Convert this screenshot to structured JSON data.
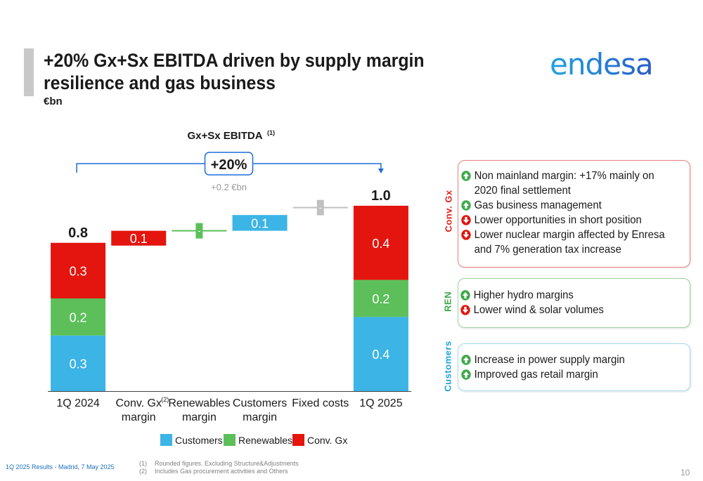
{
  "title": "+20% Gx+Sx EBITDA driven by supply margin resilience and gas business",
  "unit": "€bn",
  "logo_text": "endesa",
  "chart_data": {
    "type": "bar",
    "subtype": "waterfall-stacked",
    "title": "Gx+Sx EBITDA",
    "title_note": "(1)",
    "categories": [
      "1Q 2024",
      "Conv. Gx margin",
      "Renewables margin",
      "Customers margin",
      "Fixed costs",
      "1Q 2025"
    ],
    "category_lines": [
      [
        "1Q 2024"
      ],
      [
        "Conv. Gx",
        "margin"
      ],
      [
        "Renewables",
        "margin"
      ],
      [
        "Customers",
        "margin"
      ],
      [
        "Fixed costs"
      ],
      [
        "1Q 2025"
      ]
    ],
    "category_note": {
      "index": 1,
      "text": "(2)"
    },
    "series": [
      {
        "name": "Customers",
        "color": "#3cb4e6"
      },
      {
        "name": "Renewables",
        "color": "#5cbf5a"
      },
      {
        "name": "Conv. Gx",
        "color": "#e3150e"
      }
    ],
    "totals": [
      {
        "category": "1Q 2024",
        "total": 0.8,
        "total_label": "0.8",
        "stack": [
          {
            "series": "Customers",
            "value": 0.3,
            "label": "0.3"
          },
          {
            "series": "Renewables",
            "value": 0.2,
            "label": "0.2"
          },
          {
            "series": "Conv. Gx",
            "value": 0.3,
            "label": "0.3"
          }
        ]
      },
      {
        "category": "1Q 2025",
        "total": 1.0,
        "total_label": "1.0",
        "stack": [
          {
            "series": "Customers",
            "value": 0.4,
            "label": "0.4"
          },
          {
            "series": "Renewables",
            "value": 0.2,
            "label": "0.2"
          },
          {
            "series": "Conv. Gx",
            "value": 0.4,
            "label": "0.4"
          }
        ]
      }
    ],
    "steps": [
      {
        "category": "Conv. Gx margin",
        "from": 0.785,
        "to": 0.865,
        "label": "0.1",
        "color": "#e3150e"
      },
      {
        "category": "Renewables margin",
        "from": 0.865,
        "to": 0.865,
        "label": "-",
        "color": "#5cbf5a"
      },
      {
        "category": "Customers margin",
        "from": 0.865,
        "to": 0.95,
        "label": "0.1",
        "color": "#3cb4e6"
      },
      {
        "category": "Fixed costs",
        "from": 0.99,
        "to": 0.99,
        "label": "-",
        "color": "#c0c0c0"
      }
    ],
    "ylim": [
      0,
      1.08
    ],
    "growth": {
      "label": "+20%",
      "sublabel": "+0.2 €bn",
      "from_category": "1Q 2024",
      "to_category": "1Q 2025"
    },
    "legend_position": "bottom"
  },
  "panels": {
    "conv_gx": {
      "label": "Conv. Gx",
      "color": "#e41e13",
      "items": [
        {
          "direction": "up",
          "text": "Non mainland margin: +17% mainly on 2020 final settlement"
        },
        {
          "direction": "up",
          "text": "Gas business management"
        },
        {
          "direction": "down",
          "text": "Lower opportunities in short position"
        },
        {
          "direction": "down",
          "text": "Lower nuclear margin affected by Enresa and 7% generation tax increase"
        }
      ]
    },
    "ren": {
      "label": "REN",
      "color": "#3da94a",
      "items": [
        {
          "direction": "up",
          "text": "Higher hydro margins"
        },
        {
          "direction": "down",
          "text": "Lower wind & solar volumes"
        }
      ]
    },
    "customers": {
      "label": "Customers",
      "color": "#1ea3dc",
      "items": [
        {
          "direction": "up",
          "text": "Increase in power supply margin"
        },
        {
          "direction": "up",
          "text": "Improved gas retail margin"
        }
      ]
    }
  },
  "footer": {
    "left": "1Q 2025 Results - Madrid, 7 May 2025",
    "notes": [
      {
        "n": "(1)",
        "text": "Rounded figures. Excluding Structure&Adjustments"
      },
      {
        "n": "(2)",
        "text": "Includes Gas procurement activities and Others"
      }
    ],
    "page": "10"
  },
  "colors": {
    "up_arrow": "#3da94a",
    "down_arrow": "#e3150e",
    "growth_arrow": "#1d6fd8"
  }
}
